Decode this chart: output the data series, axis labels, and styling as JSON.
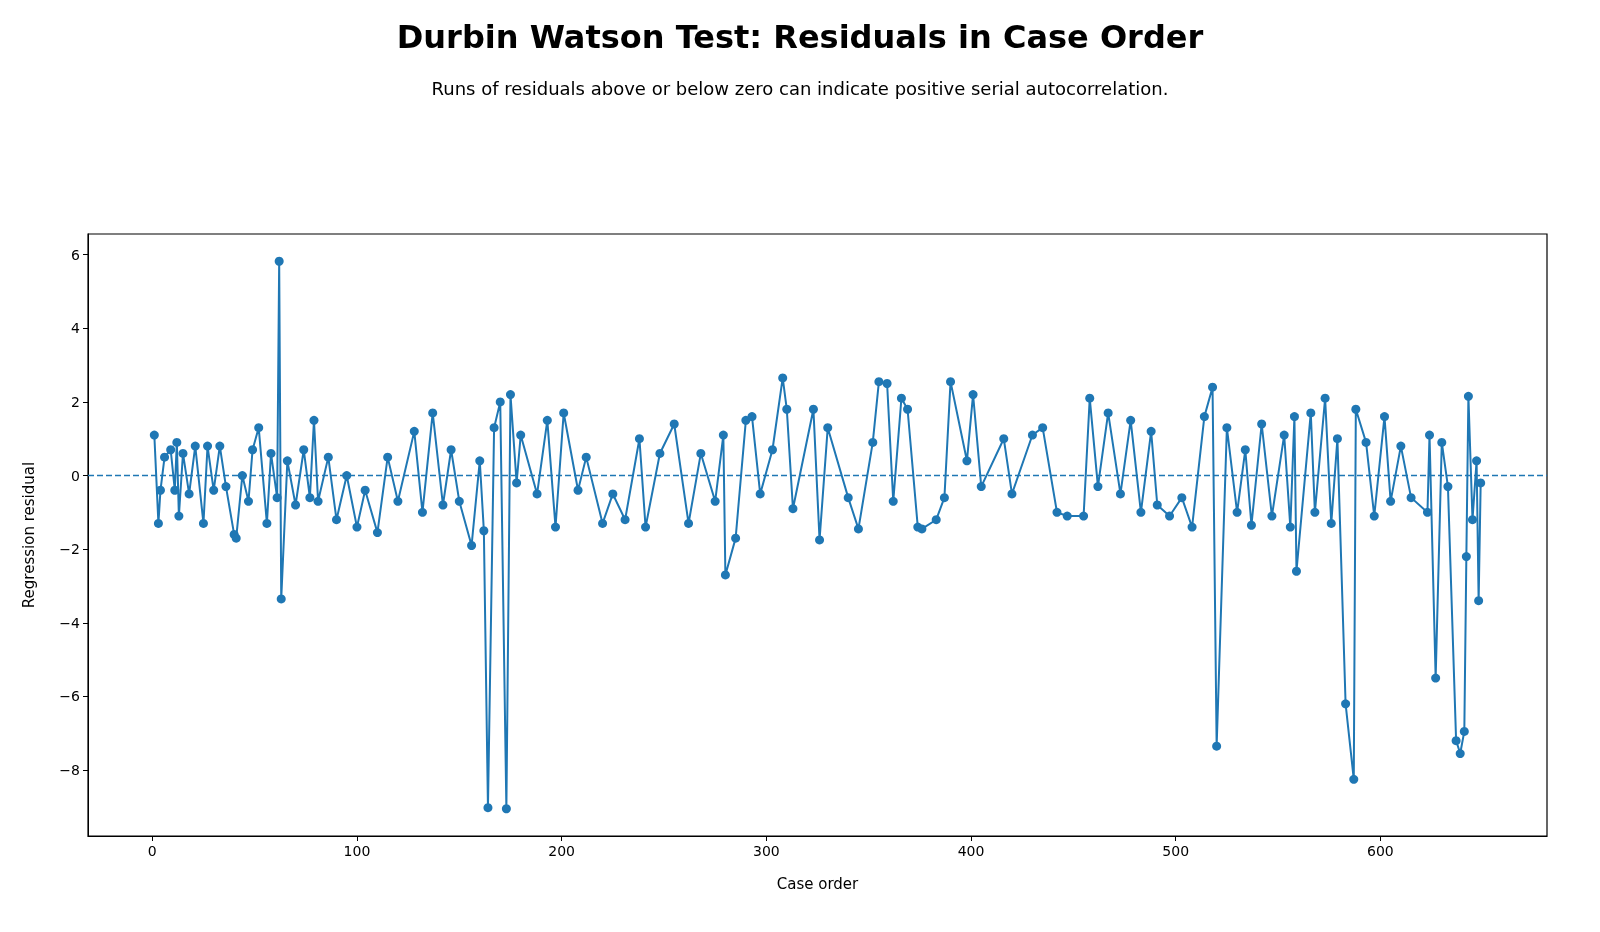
{
  "chart_data": {
    "type": "line",
    "title": "Durbin Watson Test: Residuals in Case Order",
    "subtitle": "Runs of residuals above or below zero can indicate positive serial autocorrelation.",
    "xlabel": "Case order",
    "ylabel": "Regression residual",
    "series": [
      {
        "color": "#1f77b4",
        "x": [
          1,
          3,
          4,
          6,
          9,
          11,
          12,
          13,
          15,
          18,
          21,
          25,
          27,
          30,
          33,
          36,
          40,
          41,
          44,
          47,
          49,
          52,
          56,
          58,
          61,
          62,
          63,
          66,
          70,
          74,
          77,
          79,
          81,
          86,
          90,
          95,
          100,
          104,
          110,
          115,
          120,
          128,
          132,
          137,
          142,
          146,
          150,
          156,
          160,
          162,
          164,
          167,
          170,
          173,
          175,
          178,
          180,
          188,
          193,
          197,
          201,
          208,
          212,
          220,
          225,
          231,
          238,
          241,
          248,
          255,
          262,
          268,
          275,
          279,
          280,
          285,
          290,
          293,
          297,
          303,
          308,
          310,
          313,
          323,
          326,
          330,
          340,
          345,
          352,
          355,
          359,
          362,
          366,
          369,
          374,
          376,
          383,
          387,
          390,
          398,
          401,
          405,
          416,
          420,
          430,
          435,
          442,
          447,
          455,
          458,
          462,
          467,
          473,
          478,
          483,
          488,
          491,
          497,
          503,
          508,
          514,
          518,
          520,
          525,
          530,
          534,
          537,
          542,
          547,
          553,
          556,
          558,
          559,
          566,
          568,
          573,
          576,
          579,
          583,
          587,
          588,
          593,
          597,
          602,
          605,
          610,
          615,
          623,
          624,
          627,
          630,
          633,
          637,
          639,
          641,
          642,
          643,
          645,
          647,
          648,
          649
        ],
        "values": [
          1.1,
          -1.3,
          -0.4,
          0.5,
          0.7,
          -0.4,
          0.9,
          -1.1,
          0.6,
          -0.5,
          0.8,
          -1.3,
          0.8,
          -0.4,
          0.8,
          -0.3,
          -1.6,
          -1.7,
          0,
          -0.7,
          0.7,
          1.3,
          -1.3,
          0.6,
          -0.6,
          5.82,
          -3.35,
          0.4,
          -0.8,
          0.7,
          -0.6,
          1.5,
          -0.7,
          0.5,
          -1.2,
          0,
          -1.4,
          -0.4,
          -1.55,
          0.5,
          -0.7,
          1.2,
          -1,
          1.7,
          -0.8,
          0.7,
          -0.7,
          -1.9,
          0.4,
          -1.5,
          -9.02,
          1.3,
          2,
          -9.05,
          2.2,
          -0.2,
          1.1,
          -0.5,
          1.5,
          -1.4,
          1.7,
          -0.4,
          0.5,
          -1.3,
          -0.5,
          -1.2,
          1,
          -1.4,
          0.6,
          1.4,
          -1.3,
          0.6,
          -0.7,
          1.1,
          -2.7,
          -1.7,
          1.5,
          1.6,
          -0.5,
          0.7,
          2.65,
          1.8,
          -0.9,
          1.8,
          -1.75,
          1.3,
          -0.6,
          -1.45,
          0.9,
          2.55,
          2.5,
          -0.7,
          2.1,
          1.8,
          -1.4,
          -1.45,
          -1.2,
          -0.6,
          2.55,
          0.4,
          2.2,
          -0.3,
          1,
          -0.5,
          1.1,
          1.3,
          -1,
          -1.1,
          -1.1,
          2.1,
          -0.3,
          1.7,
          -0.5,
          1.5,
          -1,
          1.2,
          -0.8,
          -1.1,
          -0.6,
          -1.4,
          1.6,
          2.4,
          -7.35,
          1.3,
          -1,
          0.7,
          -1.35,
          1.4,
          -1.1,
          1.1,
          -1.4,
          1.6,
          -2.6,
          1.7,
          -1,
          2.1,
          -1.3,
          1,
          -6.2,
          -8.25,
          1.8,
          0.9,
          -1.1,
          1.6,
          -0.7,
          0.8,
          -0.6,
          -1,
          1.1,
          -5.5,
          0.9,
          -0.3,
          -7.2,
          -7.55,
          -6.95,
          -2.2,
          2.15,
          -1.2,
          0.4,
          -3.4,
          -0.2
        ]
      }
    ],
    "marker": "circle",
    "line_style": "solid",
    "grid": false,
    "ref_lines": [
      {
        "axis": "y",
        "value": 0,
        "color": "#1f77b4",
        "line_style": "dashed"
      }
    ],
    "xlim": [
      -31.4,
      681.4
    ],
    "xticks": [
      0,
      100,
      200,
      300,
      400,
      500,
      600
    ],
    "ylim": [
      -9.79,
      6.56
    ],
    "yticks": [
      {
        "value": -8,
        "label": "−8"
      },
      {
        "value": -6,
        "label": "−6"
      },
      {
        "value": -4,
        "label": "−4"
      },
      {
        "value": -2,
        "label": "−2"
      },
      0,
      2,
      4,
      6
    ]
  }
}
